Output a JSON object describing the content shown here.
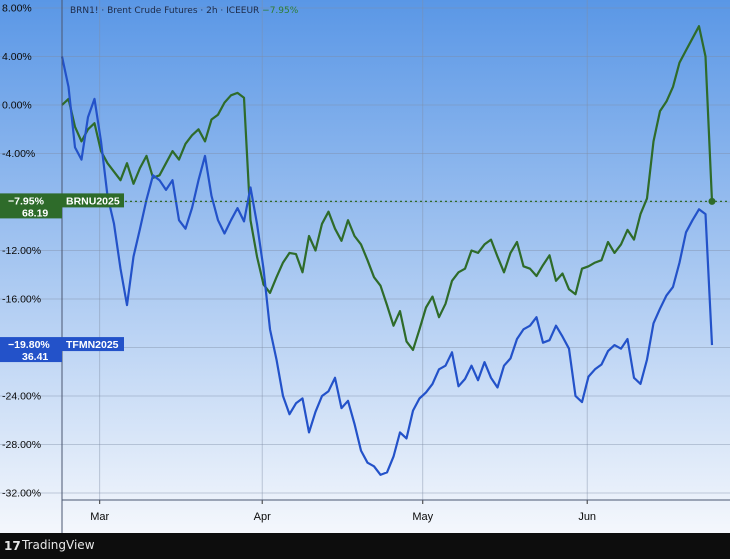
{
  "header": {
    "text": "BRN1! · Brent Crude Futures · 2h · ICEEUR",
    "change": "−7.95%"
  },
  "footer": {
    "brand": "TradingView",
    "logo": "17"
  },
  "colors": {
    "bg_top": "#5a97e6",
    "bg_bottom": "#f4f7fc",
    "brn": "#2e6b2a",
    "tfm": "#2352c9",
    "grid": "#7f8ea6",
    "axis_text": "#0a0a0a"
  },
  "chart_data": {
    "type": "line",
    "ylim": [
      -33,
      8
    ],
    "y_ticks": [
      8,
      4,
      0,
      -4,
      -8,
      -12,
      -16,
      -20,
      -24,
      -28,
      -32
    ],
    "y_tick_labels": [
      "8.00%",
      "4.00%",
      "0.00%",
      "-4.00%",
      "-8.00%",
      "-12.00%",
      "-16.00%",
      "-20.00%",
      "-24.00%",
      "-28.00%",
      "-32.00%"
    ],
    "x_months": [
      {
        "label": "Mar",
        "t": 0.058
      },
      {
        "label": "Apr",
        "t": 0.308
      },
      {
        "label": "May",
        "t": 0.555
      },
      {
        "label": "Jun",
        "t": 0.808
      }
    ],
    "series": [
      {
        "name": "BRNU2025",
        "badge_pct": "−7.95%",
        "badge_price": "68.19",
        "last_value": -7.95,
        "x": [
          0,
          0.01,
          0.02,
          0.03,
          0.04,
          0.05,
          0.06,
          0.07,
          0.08,
          0.09,
          0.1,
          0.11,
          0.12,
          0.13,
          0.14,
          0.15,
          0.16,
          0.17,
          0.18,
          0.19,
          0.2,
          0.21,
          0.22,
          0.23,
          0.24,
          0.25,
          0.26,
          0.27,
          0.28,
          0.29,
          0.3,
          0.31,
          0.32,
          0.33,
          0.34,
          0.35,
          0.36,
          0.37,
          0.38,
          0.39,
          0.4,
          0.41,
          0.42,
          0.43,
          0.44,
          0.45,
          0.46,
          0.47,
          0.48,
          0.49,
          0.5,
          0.51,
          0.52,
          0.53,
          0.54,
          0.55,
          0.56,
          0.57,
          0.58,
          0.59,
          0.6,
          0.61,
          0.62,
          0.63,
          0.64,
          0.65,
          0.66,
          0.67,
          0.68,
          0.69,
          0.7,
          0.71,
          0.72,
          0.73,
          0.74,
          0.75,
          0.76,
          0.77,
          0.78,
          0.79,
          0.8,
          0.81,
          0.82,
          0.83,
          0.84,
          0.85,
          0.86,
          0.87,
          0.88,
          0.89,
          0.9,
          0.91,
          0.92,
          0.93,
          0.94,
          0.95,
          0.96,
          0.97,
          0.98,
          0.99,
          1
        ],
        "y": [
          0,
          0.5,
          -1.8,
          -3,
          -2,
          -1.5,
          -3.8,
          -4.8,
          -5.5,
          -6.2,
          -4.8,
          -6.5,
          -5.2,
          -4.2,
          -6,
          -5.8,
          -4.8,
          -3.8,
          -4.5,
          -3.2,
          -2.5,
          -2,
          -3,
          -1.2,
          -0.8,
          0.2,
          0.8,
          1,
          0.6,
          -9.5,
          -12.5,
          -14.8,
          -15.5,
          -14.2,
          -13,
          -12.2,
          -12.3,
          -13.8,
          -10.8,
          -12,
          -9.8,
          -8.8,
          -10.2,
          -11.2,
          -9.5,
          -10.8,
          -11.5,
          -12.8,
          -14.2,
          -14.9,
          -16.5,
          -18.2,
          -17,
          -19.5,
          -20.2,
          -18.5,
          -16.7,
          -15.8,
          -17.5,
          -16.4,
          -14.5,
          -13.8,
          -13.5,
          -12,
          -12.2,
          -11.5,
          -11.1,
          -12.5,
          -13.8,
          -12.2,
          -11.3,
          -13.3,
          -13.5,
          -14.1,
          -13.2,
          -12.4,
          -14.5,
          -13.9,
          -15.2,
          -15.6,
          -13.5,
          -13.3,
          -13,
          -12.8,
          -11.3,
          -12.2,
          -11.5,
          -10.3,
          -11.1,
          -9,
          -7.7,
          -3,
          -0.5,
          0.3,
          1.5,
          3.5,
          4.5,
          5.5,
          6.5,
          4,
          -7.95
        ]
      },
      {
        "name": "TFMN2025",
        "badge_pct": "−19.80%",
        "badge_price": "36.41",
        "last_value": -19.8,
        "x": [
          0,
          0.01,
          0.02,
          0.03,
          0.04,
          0.05,
          0.06,
          0.07,
          0.08,
          0.09,
          0.1,
          0.11,
          0.12,
          0.13,
          0.14,
          0.15,
          0.16,
          0.17,
          0.18,
          0.19,
          0.2,
          0.21,
          0.22,
          0.23,
          0.24,
          0.25,
          0.26,
          0.27,
          0.28,
          0.29,
          0.3,
          0.31,
          0.32,
          0.33,
          0.34,
          0.35,
          0.36,
          0.37,
          0.38,
          0.39,
          0.4,
          0.41,
          0.42,
          0.43,
          0.44,
          0.45,
          0.46,
          0.47,
          0.48,
          0.49,
          0.5,
          0.51,
          0.52,
          0.53,
          0.54,
          0.55,
          0.56,
          0.57,
          0.58,
          0.59,
          0.6,
          0.61,
          0.62,
          0.63,
          0.64,
          0.65,
          0.66,
          0.67,
          0.68,
          0.69,
          0.7,
          0.71,
          0.72,
          0.73,
          0.74,
          0.75,
          0.76,
          0.77,
          0.78,
          0.79,
          0.8,
          0.81,
          0.82,
          0.83,
          0.84,
          0.85,
          0.86,
          0.87,
          0.88,
          0.89,
          0.9,
          0.91,
          0.92,
          0.93,
          0.94,
          0.95,
          0.96,
          0.97,
          0.98,
          0.99,
          1
        ],
        "y": [
          4,
          1.5,
          -3.5,
          -4.5,
          -1,
          0.5,
          -3,
          -7.5,
          -9.8,
          -13.5,
          -16.5,
          -12.5,
          -10.2,
          -7.8,
          -5.8,
          -6.2,
          -7,
          -6.2,
          -9.5,
          -10.2,
          -8.5,
          -6.2,
          -4.2,
          -7.5,
          -9.5,
          -10.6,
          -9.5,
          -8.5,
          -9.6,
          -6.8,
          -9.8,
          -13.5,
          -18.5,
          -21,
          -24,
          -25.5,
          -24.6,
          -24.2,
          -27,
          -25.3,
          -24,
          -23.6,
          -22.5,
          -25,
          -24.4,
          -26.3,
          -28.5,
          -29.5,
          -29.8,
          -30.5,
          -30.3,
          -29,
          -27,
          -27.5,
          -25.2,
          -24.2,
          -23.7,
          -23,
          -21.8,
          -21.5,
          -20.4,
          -23.2,
          -22.6,
          -21.5,
          -22.7,
          -21.2,
          -22.5,
          -23.3,
          -21.5,
          -20.9,
          -19.3,
          -18.5,
          -18.2,
          -17.5,
          -19.6,
          -19.4,
          -18.2,
          -19.1,
          -20.1,
          -24,
          -24.5,
          -22.4,
          -21.8,
          -21.4,
          -20.3,
          -19.8,
          -20.1,
          -19.3,
          -22.5,
          -23,
          -21,
          -18,
          -16.8,
          -15.7,
          -15,
          -13,
          -10.5,
          -9.5,
          -8.6,
          -9,
          -19.8
        ]
      }
    ]
  }
}
